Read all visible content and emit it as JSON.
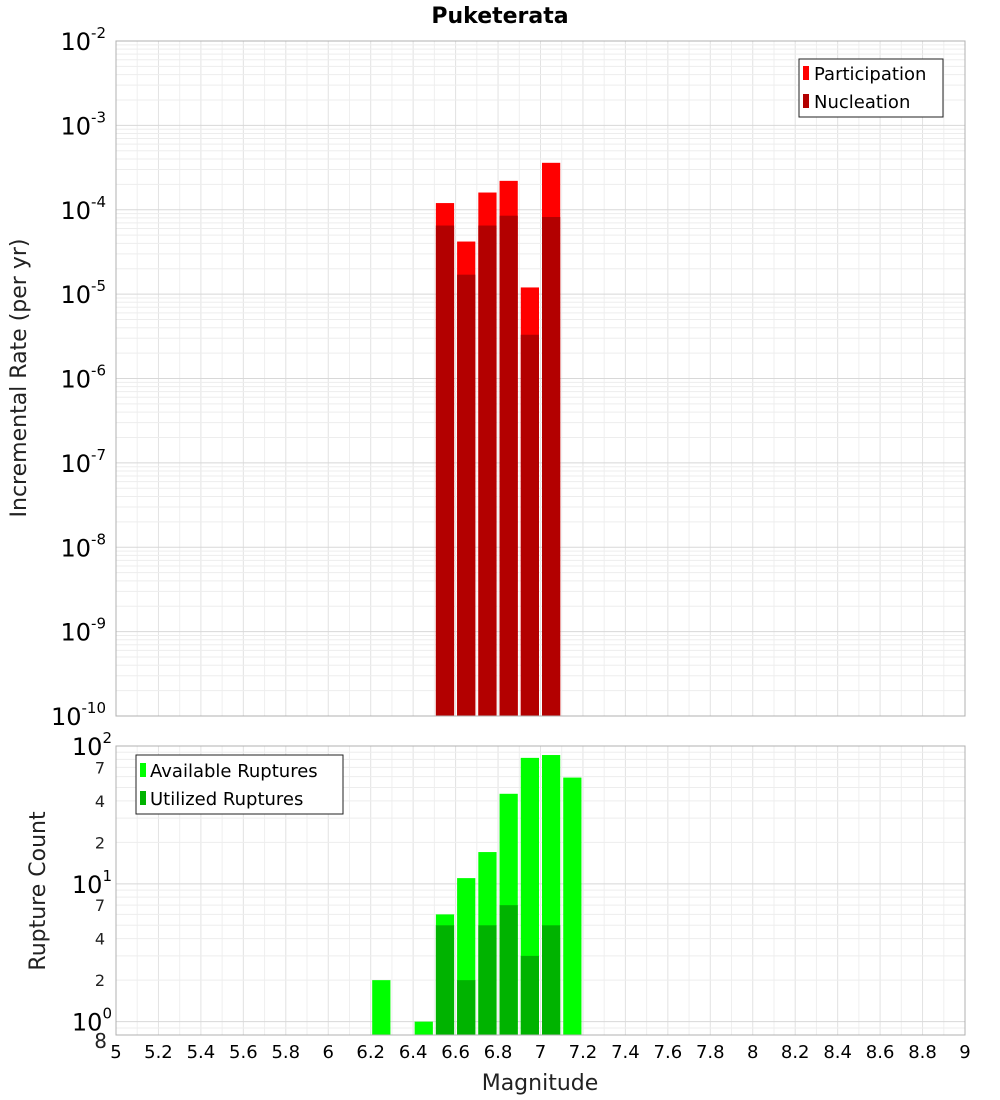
{
  "title": "Puketerata",
  "chart_data": [
    {
      "type": "bar",
      "stacking": "overlay",
      "ylabel": "Incremental Rate (per yr)",
      "yscale": "log",
      "ylim": [
        1e-10,
        0.01
      ],
      "xlim": [
        5,
        9
      ],
      "grid": true,
      "legend_position": "top-right",
      "y_ticks": [
        {
          "base": "10",
          "exp": "-10"
        },
        {
          "base": "10",
          "exp": "-9"
        },
        {
          "base": "10",
          "exp": "-8"
        },
        {
          "base": "10",
          "exp": "-7"
        },
        {
          "base": "10",
          "exp": "-6"
        },
        {
          "base": "10",
          "exp": "-5"
        },
        {
          "base": "10",
          "exp": "-4"
        },
        {
          "base": "10",
          "exp": "-3"
        },
        {
          "base": "10",
          "exp": "-2"
        }
      ],
      "series": [
        {
          "name": "Participation",
          "color": "#ff0000",
          "x": [
            6.55,
            6.65,
            6.75,
            6.85,
            6.95,
            7.05
          ],
          "values": [
            0.00012,
            4.2e-05,
            0.00016,
            0.00022,
            1.2e-05,
            0.00036
          ]
        },
        {
          "name": "Nucleation",
          "color": "#b30000",
          "x": [
            6.55,
            6.65,
            6.75,
            6.85,
            6.95,
            7.05
          ],
          "values": [
            6.5e-05,
            1.7e-05,
            6.5e-05,
            8.5e-05,
            3.3e-06,
            8.2e-05
          ]
        }
      ]
    },
    {
      "type": "bar",
      "stacking": "overlay",
      "xlabel": "Magnitude",
      "ylabel": "Rupture Count",
      "yscale": "log",
      "ylim": [
        0.8,
        100
      ],
      "xlim": [
        5,
        9
      ],
      "grid": true,
      "legend_position": "top-left",
      "x_ticks": [
        "5",
        "5.2",
        "5.4",
        "5.6",
        "5.8",
        "6",
        "6.2",
        "6.4",
        "6.6",
        "6.8",
        "7",
        "7.2",
        "7.4",
        "7.6",
        "7.8",
        "8",
        "8.2",
        "8.4",
        "8.6",
        "8.8",
        "9"
      ],
      "y_major_ticks": [
        {
          "value": 1,
          "base": "10",
          "exp": "0"
        },
        {
          "value": 10,
          "base": "10",
          "exp": "1"
        },
        {
          "value": 100,
          "base": "10",
          "exp": "2"
        }
      ],
      "y_minor_ticks": [
        {
          "value": 0.8,
          "label": "8"
        },
        {
          "value": 2,
          "label": "2"
        },
        {
          "value": 4,
          "label": "4"
        },
        {
          "value": 7,
          "label": "7"
        },
        {
          "value": 20,
          "label": "2"
        },
        {
          "value": 40,
          "label": "4"
        },
        {
          "value": 70,
          "label": "7"
        }
      ],
      "series": [
        {
          "name": "Available Ruptures",
          "color": "#00ff00",
          "x": [
            6.25,
            6.45,
            6.55,
            6.65,
            6.75,
            6.85,
            6.95,
            7.05,
            7.15
          ],
          "values": [
            2,
            1,
            6,
            11,
            17,
            45,
            82,
            86,
            59
          ]
        },
        {
          "name": "Utilized Ruptures",
          "color": "#00b300",
          "x": [
            6.55,
            6.65,
            6.75,
            6.85,
            6.95,
            7.05
          ],
          "values": [
            5,
            2,
            5,
            7,
            3,
            5
          ]
        }
      ]
    }
  ]
}
